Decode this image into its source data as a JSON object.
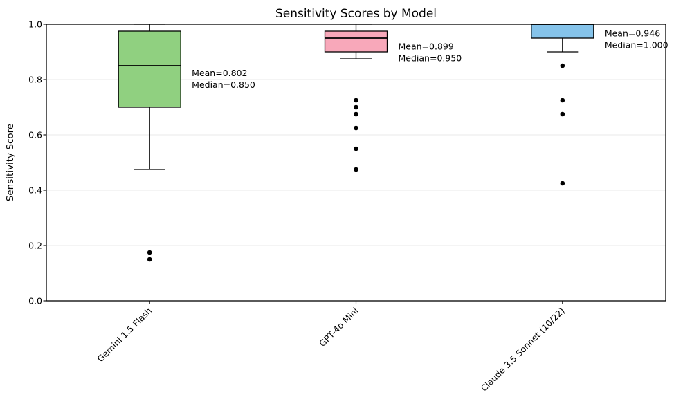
{
  "chart_data": {
    "type": "box",
    "title": "Sensitivity Scores by Model",
    "ylabel": "Sensitivity Score",
    "xlabel": "",
    "ylim": [
      0.0,
      1.0
    ],
    "ytick_labels": [
      "0.0",
      "0.2",
      "0.4",
      "0.6",
      "0.8",
      "1.0"
    ],
    "ytick_values": [
      0.0,
      0.2,
      0.4,
      0.6,
      0.8,
      1.0
    ],
    "grid": "horizontal-light",
    "legend": "none",
    "categories": [
      "Gemini 1.5 Flash",
      "GPT-4o Mini",
      "Claude 3.5 Sonnet (10/22)"
    ],
    "colors": {
      "edge": "#000000",
      "gridline": "#e8e8e8",
      "outlier": "#000000",
      "background": "#ffffff"
    },
    "series": [
      {
        "label": "Gemini 1.5 Flash",
        "box_color": "#90d080",
        "whisker_low": 0.475,
        "q1": 0.7,
        "median": 0.85,
        "q3": 0.975,
        "whisker_high": 1.0,
        "mean": 0.802,
        "outliers": [
          0.175,
          0.15
        ],
        "annotation_lines": [
          "Mean=0.802",
          "Median=0.850"
        ]
      },
      {
        "label": "GPT-4o Mini",
        "box_color": "#f8a8ba",
        "whisker_low": 0.875,
        "q1": 0.9,
        "median": 0.95,
        "q3": 0.975,
        "whisker_high": 1.0,
        "mean": 0.899,
        "outliers": [
          0.725,
          0.7,
          0.675,
          0.625,
          0.55,
          0.475
        ],
        "annotation_lines": [
          "Mean=0.899",
          "Median=0.950"
        ]
      },
      {
        "label": "Claude 3.5 Sonnet (10/22)",
        "box_color": "#85c3ea",
        "whisker_low": 0.9,
        "q1": 0.95,
        "median": 1.0,
        "q3": 1.0,
        "whisker_high": 1.0,
        "mean": 0.946,
        "outliers": [
          0.85,
          0.725,
          0.675,
          0.425
        ],
        "annotation_lines": [
          "Mean=0.946",
          "Median=1.000"
        ]
      }
    ]
  }
}
